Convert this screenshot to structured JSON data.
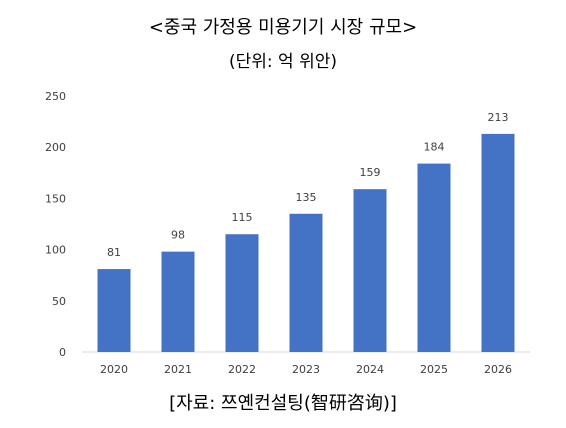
{
  "chart_data": {
    "type": "bar",
    "title": "<중국 가정용 미용기기 시장 규모>",
    "subtitle": "(단위: 억 위안)",
    "source": "[자료: 쯔옌컨설팅(智研咨询)]",
    "categories": [
      "2020",
      "2021",
      "2022",
      "2023",
      "2024",
      "2025",
      "2026"
    ],
    "values": [
      81,
      98,
      115,
      135,
      159,
      184,
      213
    ],
    "ylim": [
      0,
      250
    ],
    "yticks": [
      0,
      50,
      100,
      150,
      200,
      250
    ],
    "ytick_labels": [
      "0",
      "50",
      "100",
      "150",
      "200",
      "250"
    ],
    "data_labels": [
      "81",
      "98",
      "115",
      "135",
      "159",
      "184",
      "213"
    ],
    "grid": false,
    "legend": "none",
    "colors": {
      "bar": "#4472C4",
      "axis": "#D9D9D9",
      "text": "#404040"
    }
  }
}
